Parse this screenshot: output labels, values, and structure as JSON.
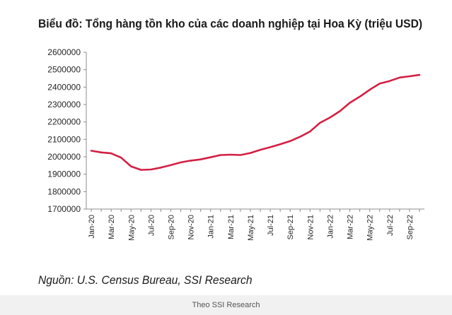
{
  "chart_data": {
    "type": "line",
    "title": "Biểu đồ: Tổng hàng tồn kho của các doanh nghiệp tại Hoa Kỳ (triệu USD)",
    "xlabel": "",
    "ylabel": "",
    "ylim": [
      1700000,
      2600000
    ],
    "yticks": [
      1700000,
      1800000,
      1900000,
      2000000,
      2100000,
      2200000,
      2300000,
      2400000,
      2500000,
      2600000
    ],
    "ytick_labels": [
      "1700000",
      "1800000",
      "1900000",
      "2000000",
      "2100000",
      "2200000",
      "2300000",
      "2400000",
      "2500000",
      "2600000"
    ],
    "x": [
      "Jan-20",
      "Feb-20",
      "Mar-20",
      "Apr-20",
      "May-20",
      "Jun-20",
      "Jul-20",
      "Aug-20",
      "Sep-20",
      "Oct-20",
      "Nov-20",
      "Dec-20",
      "Jan-21",
      "Feb-21",
      "Mar-21",
      "Apr-21",
      "May-21",
      "Jun-21",
      "Jul-21",
      "Aug-21",
      "Sep-21",
      "Oct-21",
      "Nov-21",
      "Dec-21",
      "Jan-22",
      "Feb-22",
      "Mar-22",
      "Apr-22",
      "May-22",
      "Jun-22",
      "Jul-22",
      "Aug-22",
      "Sep-22",
      "Oct-22"
    ],
    "xtick_labels": [
      "Jan-20",
      "Mar-20",
      "May-20",
      "Jul-20",
      "Sep-20",
      "Nov-20",
      "Jan-21",
      "Mar-21",
      "May-21",
      "Jul-21",
      "Sep-21",
      "Nov-21",
      "Jan-22",
      "Mar-22",
      "May-22",
      "Jul-22",
      "Sep-22"
    ],
    "series": [
      {
        "values": [
          2035000,
          2025000,
          2020000,
          1995000,
          1945000,
          1925000,
          1927000,
          1938000,
          1952000,
          1968000,
          1978000,
          1985000,
          1997000,
          2010000,
          2012000,
          2010000,
          2022000,
          2040000,
          2055000,
          2072000,
          2090000,
          2115000,
          2145000,
          2195000,
          2225000,
          2262000,
          2310000,
          2345000,
          2385000,
          2420000,
          2435000,
          2455000,
          2462000,
          2470000
        ]
      }
    ],
    "line_color": "#d41f43",
    "grid": false,
    "legend": "none"
  },
  "source": "Nguồn: U.S. Census Bureau, SSI Research",
  "caption": "Theo SSI Research"
}
